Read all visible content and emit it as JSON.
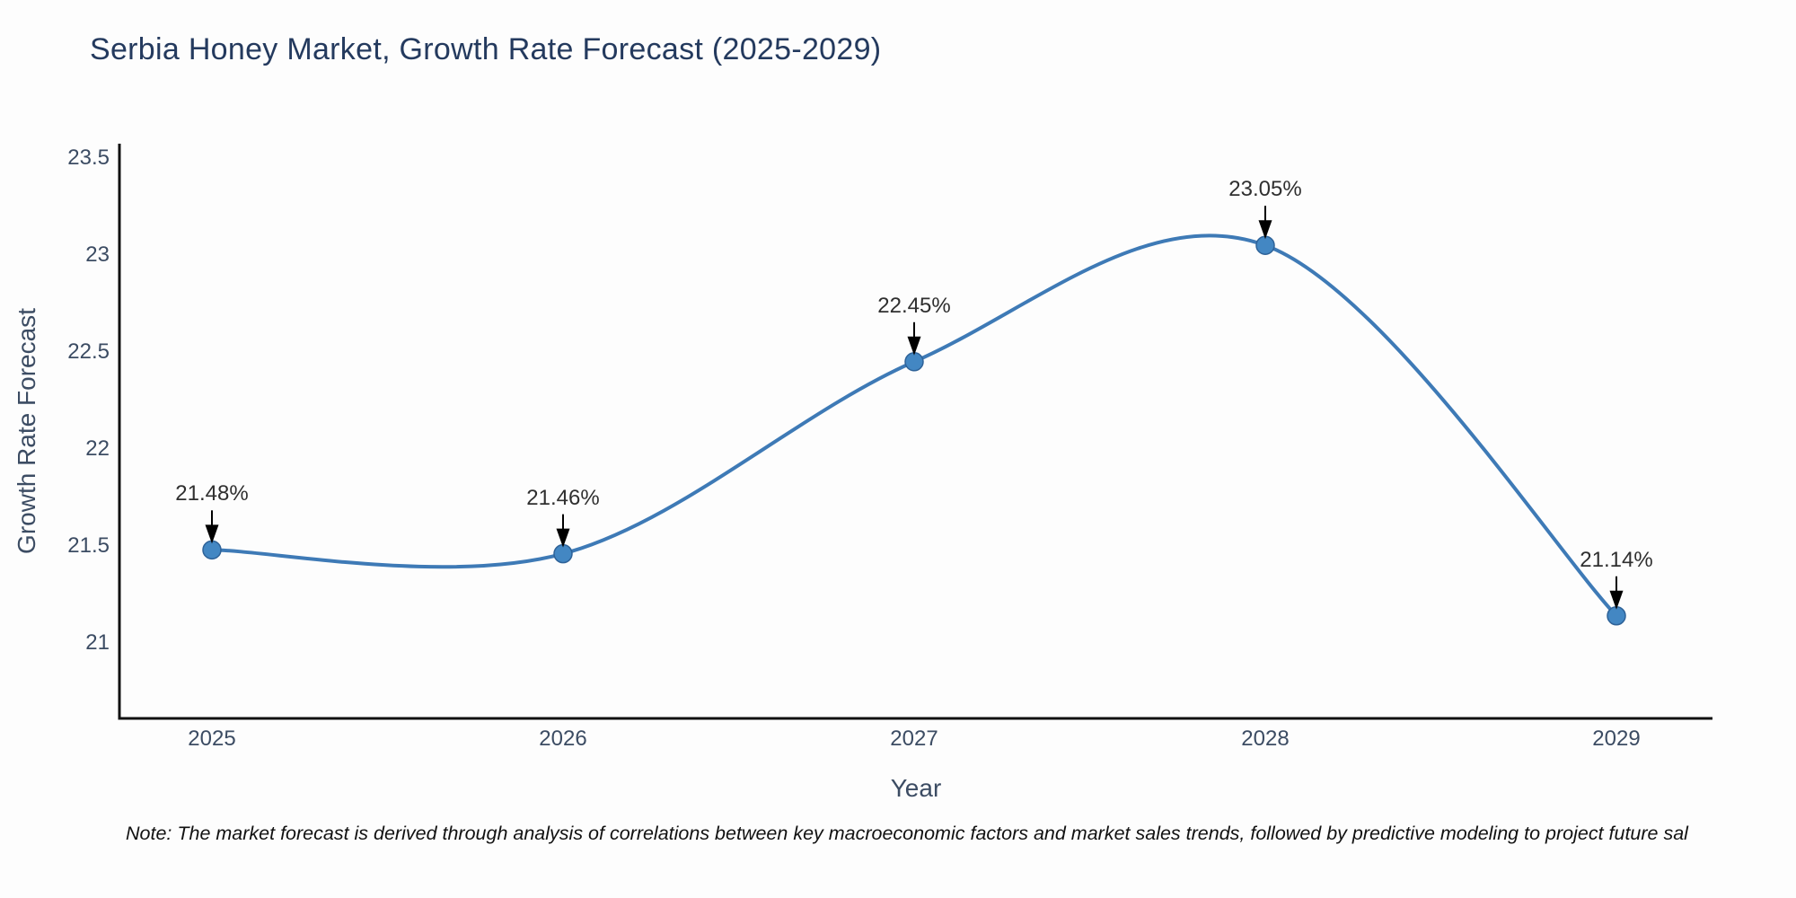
{
  "title": "Serbia Honey Market, Growth Rate Forecast (2025-2029)",
  "note": "Note: The market forecast is derived through analysis of correlations between key macroeconomic factors and market sales trends, followed by predictive modeling to project future sal",
  "chart_data": {
    "type": "line",
    "title": "Serbia Honey Market, Growth Rate Forecast (2025-2029)",
    "xlabel": "Year",
    "ylabel": "Growth Rate Forecast",
    "x": [
      2025,
      2026,
      2027,
      2028,
      2029
    ],
    "series": [
      {
        "name": "Growth Rate Forecast",
        "values": [
          21.48,
          21.46,
          22.45,
          23.05,
          21.14
        ]
      }
    ],
    "point_labels": [
      "21.48%",
      "21.46%",
      "22.45%",
      "23.05%",
      "21.14%"
    ],
    "x_ticks": [
      "2025",
      "2026",
      "2027",
      "2028",
      "2029"
    ],
    "y_ticks": [
      23.5,
      23,
      22.5,
      22,
      21.5,
      21
    ],
    "ylim": [
      20.59,
      23.56
    ],
    "grid": false,
    "legend_position": "none",
    "line_shape": "spline",
    "colors": {
      "line": "#3e7ab6",
      "marker_fill": "#4387c3",
      "marker_edge": "#2e6298",
      "axis": "#111111",
      "axis_text": "#3c4c63",
      "title_text": "#243a5e",
      "annotation_text": "#2f2f2f",
      "arrow": "#000000",
      "background": "#fdfdfd"
    }
  }
}
